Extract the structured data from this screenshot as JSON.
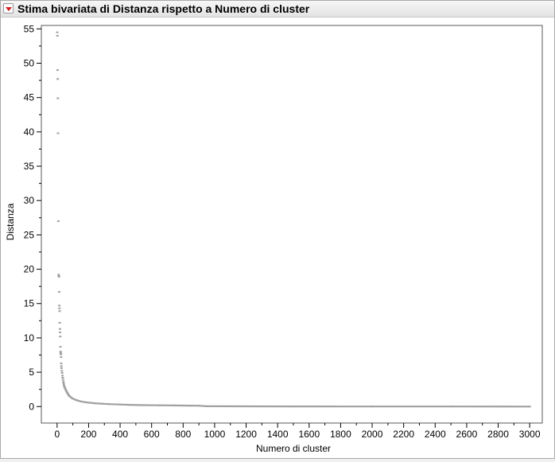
{
  "window": {
    "title": "Stima bivariata di Distanza rispetto a Numero di cluster"
  },
  "chart_data": {
    "type": "scatter",
    "title": "",
    "xlabel": "Numero di cluster",
    "ylabel": "Distanza",
    "xlim": [
      -100,
      3080
    ],
    "ylim": [
      -2.4,
      55.5
    ],
    "x_ticks": [
      0,
      200,
      400,
      600,
      800,
      1000,
      1200,
      1400,
      1600,
      1800,
      2000,
      2200,
      2400,
      2600,
      2800,
      3000
    ],
    "y_ticks": [
      0,
      5,
      10,
      15,
      20,
      25,
      30,
      35,
      40,
      45,
      50,
      55
    ],
    "grid": false,
    "marker_color": "#a0a0a0",
    "points": [
      [
        1,
        54.5
      ],
      [
        2,
        54.0
      ],
      [
        3,
        49.0
      ],
      [
        4,
        47.7
      ],
      [
        5,
        44.9
      ],
      [
        6,
        39.8
      ],
      [
        8,
        27.0
      ],
      [
        10,
        19.2
      ],
      [
        11,
        19.0
      ],
      [
        12,
        18.9
      ],
      [
        13,
        16.7
      ],
      [
        14,
        14.7
      ],
      [
        15,
        14.3
      ],
      [
        16,
        13.9
      ],
      [
        17,
        12.2
      ],
      [
        18,
        11.3
      ],
      [
        19,
        10.8
      ],
      [
        20,
        10.2
      ],
      [
        21,
        8.7
      ],
      [
        22,
        8.0
      ],
      [
        23,
        7.8
      ],
      [
        24,
        7.6
      ],
      [
        25,
        7.2
      ],
      [
        26,
        6.3
      ],
      [
        27,
        5.9
      ],
      [
        28,
        5.6
      ],
      [
        30,
        5.2
      ],
      [
        32,
        4.9
      ],
      [
        34,
        4.5
      ],
      [
        36,
        4.2
      ],
      [
        38,
        3.9
      ],
      [
        40,
        3.6
      ],
      [
        42,
        3.3
      ],
      [
        45,
        3.0
      ],
      [
        48,
        2.8
      ],
      [
        52,
        2.6
      ],
      [
        56,
        2.4
      ],
      [
        60,
        2.2
      ],
      [
        65,
        2.0
      ],
      [
        70,
        1.8
      ],
      [
        75,
        1.6
      ],
      [
        80,
        1.5
      ],
      [
        90,
        1.3
      ],
      [
        100,
        1.15
      ],
      [
        115,
        1.0
      ],
      [
        130,
        0.88
      ],
      [
        150,
        0.75
      ],
      [
        175,
        0.65
      ],
      [
        200,
        0.57
      ],
      [
        240,
        0.48
      ],
      [
        280,
        0.42
      ],
      [
        330,
        0.36
      ],
      [
        400,
        0.3
      ],
      [
        460,
        0.25
      ],
      [
        550,
        0.21
      ],
      [
        650,
        0.18
      ],
      [
        750,
        0.16
      ],
      [
        850,
        0.14
      ],
      [
        900,
        0.12
      ],
      [
        950,
        0.04
      ],
      [
        1000,
        0.04
      ],
      [
        1200,
        0.03
      ],
      [
        1500,
        0.02
      ],
      [
        2000,
        0.01
      ],
      [
        2500,
        0.01
      ],
      [
        3000,
        0.0
      ]
    ]
  }
}
